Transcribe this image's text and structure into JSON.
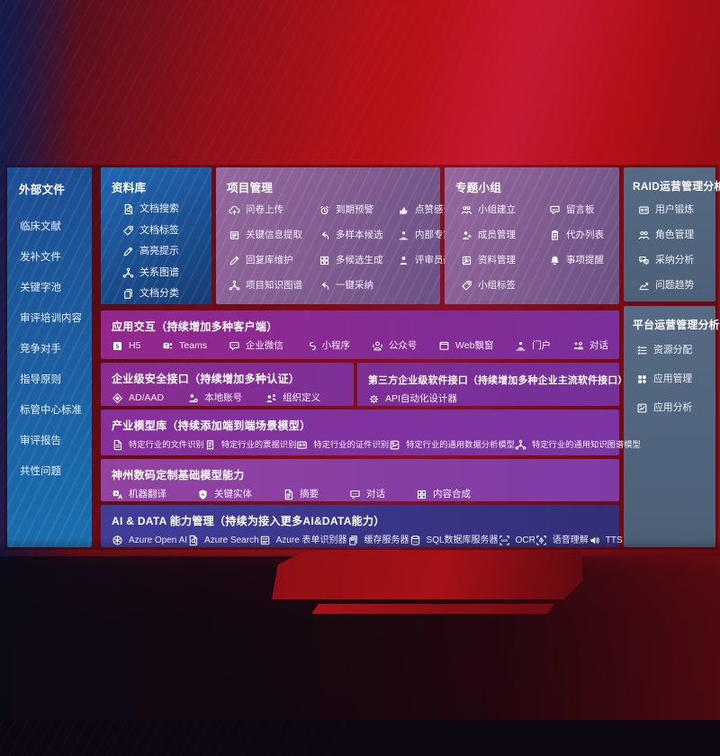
{
  "palette": {
    "side1": "#1d4d92",
    "side2": "#1a6fae",
    "lib1": "#2267b2",
    "lib2": "#153c74",
    "mauve1": "#96689f",
    "mauve2": "#6b5184",
    "slate1": "#566a85",
    "slate2": "#4d6078",
    "mag1": "#93278d",
    "mag2": "#7b2f9a",
    "sec1": "#8b2c91",
    "sec2": "#7c3097",
    "third1": "#7d2f96",
    "third2": "#75309a",
    "mod1": "#86309b",
    "mod2": "#7b35a2",
    "base1": "#9343a1",
    "base2": "#7e3ba6",
    "ai1": "#413e9b",
    "ai2": "#322f78",
    "bgRed": "#c11218",
    "standRed": "#a61117"
  },
  "sidebar": {
    "title": "外部文件",
    "items": [
      "临床文献",
      "发补文件",
      "关键字池",
      "审评培训内容",
      "竞争对手",
      "指导原则",
      "标管中心标准",
      "审评报告",
      "共性问题"
    ]
  },
  "panels": {
    "library": {
      "title": "资料库",
      "items": [
        {
          "icon": "doc-search",
          "label": "文档搜索"
        },
        {
          "icon": "tag",
          "label": "文档标签"
        },
        {
          "icon": "pencil",
          "label": "高亮提示"
        },
        {
          "icon": "network",
          "label": "关系图谱"
        },
        {
          "icon": "docs",
          "label": "文档分类"
        }
      ]
    },
    "project": {
      "title": "项目管理",
      "items": [
        {
          "icon": "cloud-up",
          "label": "问卷上传"
        },
        {
          "icon": "alarm",
          "label": "到期预警"
        },
        {
          "icon": "thumb",
          "label": "点赞感谢"
        },
        {
          "icon": "extract",
          "label": "关键信息提取"
        },
        {
          "icon": "reply",
          "label": "多样本候选"
        },
        {
          "icon": "rank",
          "label": "内部专家排名"
        },
        {
          "icon": "pencil",
          "label": "回复库维护"
        },
        {
          "icon": "puzzle",
          "label": "多候选生成"
        },
        {
          "icon": "person",
          "label": "评审员画像"
        },
        {
          "icon": "network",
          "label": "项目知识图谱"
        },
        {
          "icon": "reply",
          "label": "一键采纳"
        }
      ]
    },
    "group": {
      "title": "专题小组",
      "items": [
        {
          "icon": "people",
          "label": "小组建立"
        },
        {
          "icon": "bbs",
          "label": "留言板"
        },
        {
          "icon": "person-add",
          "label": "成员管理"
        },
        {
          "icon": "clipboard",
          "label": "代办列表"
        },
        {
          "icon": "album",
          "label": "资料管理"
        },
        {
          "icon": "bell",
          "label": "事项提醒"
        },
        {
          "icon": "tag",
          "label": "小组标签"
        }
      ]
    },
    "raid": {
      "title": "RAID运营管理分析",
      "items": [
        {
          "icon": "idcard",
          "label": "用户锻炼"
        },
        {
          "icon": "people",
          "label": "角色管理"
        },
        {
          "icon": "qa",
          "label": "采纳分析"
        },
        {
          "icon": "chart",
          "label": "问题趋势"
        }
      ]
    },
    "platform": {
      "title": "平台运营管理分析",
      "items": [
        {
          "icon": "list",
          "label": "资源分配"
        },
        {
          "icon": "grid",
          "label": "应用管理"
        },
        {
          "icon": "chart-box",
          "label": "应用分析"
        }
      ]
    }
  },
  "rows": {
    "app": {
      "title": "应用交互（持续增加多种客户端）",
      "items": [
        {
          "icon": "h5",
          "label": "H5"
        },
        {
          "icon": "teams",
          "label": "Teams"
        },
        {
          "icon": "wechat",
          "label": "企业微信"
        },
        {
          "icon": "miniprogram",
          "label": "小程序"
        },
        {
          "icon": "official-account",
          "label": "公众号"
        },
        {
          "icon": "web-window",
          "label": "Web飘窗"
        },
        {
          "icon": "portal",
          "label": "门户"
        },
        {
          "icon": "chat",
          "label": "对话"
        }
      ]
    },
    "security": {
      "title": "企业级安全接口（持续增加多种认证）",
      "items": [
        {
          "icon": "ad",
          "label": "AD/AAD"
        },
        {
          "icon": "local-account",
          "label": "本地账号"
        },
        {
          "icon": "org",
          "label": "组织定义"
        }
      ]
    },
    "third": {
      "title": "第三方企业级软件接口（持续增加多种企业主流软件接口）",
      "items": [
        {
          "icon": "api-gear",
          "label": "API自动化设计器"
        }
      ]
    },
    "models": {
      "title": "产业模型库（持续添加端到端场景模型）",
      "items": [
        {
          "icon": "doc-scan",
          "label": "特定行业的文件识别"
        },
        {
          "icon": "receipt",
          "label": "特定行业的票据识别"
        },
        {
          "icon": "idcard",
          "label": "特定行业的证件识别"
        },
        {
          "icon": "image-box",
          "label": "特定行业的通用数据分析模型"
        },
        {
          "icon": "network",
          "label": "特定行业的通用知识图谱模型"
        }
      ]
    },
    "base": {
      "title": "神州数码定制基础模型能力",
      "items": [
        {
          "icon": "translate",
          "label": "机器翻译"
        },
        {
          "icon": "shield-a",
          "label": "关键实体"
        },
        {
          "icon": "summary",
          "label": "摘要"
        },
        {
          "icon": "speech",
          "label": "对话"
        },
        {
          "icon": "puzzle",
          "label": "内容合成"
        }
      ]
    },
    "ai": {
      "title": "AI & DATA 能力管理（持续为接入更多AI&DATA能力）",
      "items": [
        {
          "icon": "openai",
          "label": "Azure Open AI"
        },
        {
          "icon": "doc-search",
          "label": "Azure Search"
        },
        {
          "icon": "form",
          "label": "Azure 表单识别器"
        },
        {
          "icon": "cache",
          "label": "缓存服务器"
        },
        {
          "icon": "sql",
          "label": "SQL数据库服务器"
        },
        {
          "icon": "ocr",
          "label": "OCR"
        },
        {
          "icon": "voice",
          "label": "语音理解"
        },
        {
          "icon": "tts",
          "label": "TTS"
        }
      ]
    }
  }
}
